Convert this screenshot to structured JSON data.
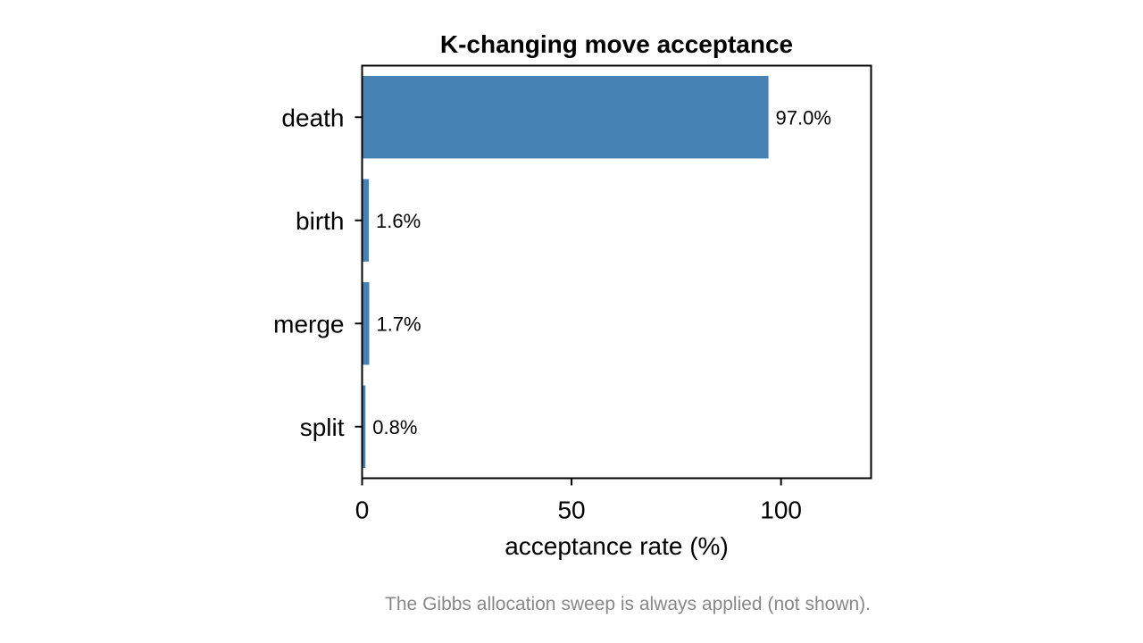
{
  "chart_data": {
    "type": "bar",
    "orientation": "horizontal",
    "title": "K-changing move acceptance",
    "xlabel": "acceptance rate (%)",
    "ylabel": "",
    "categories": [
      "death",
      "birth",
      "merge",
      "split"
    ],
    "values": [
      97.0,
      1.6,
      1.7,
      0.8
    ],
    "data_labels": [
      "97.0%",
      "1.6%",
      "1.7%",
      "0.8%"
    ],
    "xlim": [
      0,
      121.5
    ],
    "xticks": [
      0,
      50,
      100
    ],
    "xtick_labels": [
      "0",
      "50",
      "100"
    ],
    "grid": false,
    "bar_color": "#4682b4",
    "footnote": "The Gibbs allocation sweep is always applied (not shown)."
  }
}
